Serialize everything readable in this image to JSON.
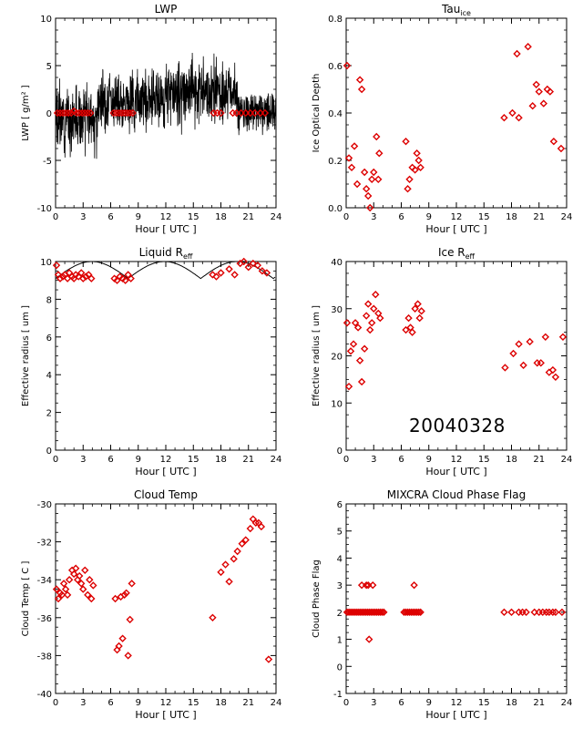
{
  "figure": {
    "date_label": "20040328"
  },
  "chart_data": [
    {
      "type": "line",
      "title": "LWP",
      "xlabel": "Hour [ UTC ]",
      "ylabel": "LWP [ g/m² ]",
      "xlim": [
        0,
        24
      ],
      "ylim": [
        -10,
        10
      ],
      "xticks": [
        0,
        3,
        6,
        9,
        12,
        15,
        18,
        21,
        24
      ],
      "yticks": [
        -10,
        -5,
        0,
        5,
        10
      ],
      "series": [
        {
          "style": "line",
          "color": "#000000",
          "segments": [
            {
              "x_range": [
                0,
                4.6
              ],
              "mean": -0.6,
              "spread": 2.8,
              "seed": 3
            },
            {
              "x_range": [
                4.6,
                12.0
              ],
              "mean": 1.4,
              "spread": 2.6,
              "seed": 7
            },
            {
              "x_range": [
                12.0,
                19.8
              ],
              "mean": 2.2,
              "spread": 2.9,
              "seed": 11
            },
            {
              "x_range": [
                19.8,
                24.0
              ],
              "mean": 0.2,
              "spread": 1.9,
              "seed": 19
            }
          ]
        },
        {
          "style": "marker",
          "marker": "diamond",
          "color": "#dd0000",
          "x": [
            0.2,
            0.5,
            0.8,
            1.1,
            1.4,
            1.7,
            2.0,
            2.3,
            2.6,
            2.9,
            3.2,
            3.5,
            3.8,
            6.3,
            6.6,
            6.9,
            7.2,
            7.5,
            7.8,
            8.1,
            8.4,
            17.2,
            17.6,
            18.0,
            19.3,
            19.7,
            20.2,
            20.7,
            21.2,
            21.7,
            22.3,
            22.8
          ],
          "y": [
            0,
            0,
            0,
            0,
            0,
            0,
            0.2,
            0,
            0,
            0,
            0,
            0,
            0,
            0,
            0,
            0,
            0,
            0,
            0,
            0,
            0,
            0,
            0,
            0,
            0,
            0,
            0,
            0,
            0,
            0,
            0,
            0
          ]
        }
      ]
    },
    {
      "type": "scatter",
      "title": "Tau",
      "title_sub": "ice",
      "xlabel": "Hour [ UTC ]",
      "ylabel": "Ice Optical Depth",
      "xlim": [
        0,
        24
      ],
      "ylim": [
        0.0,
        0.8
      ],
      "xticks": [
        0,
        3,
        6,
        9,
        12,
        15,
        18,
        21,
        24
      ],
      "yticks": [
        0.0,
        0.2,
        0.4,
        0.6,
        0.8
      ],
      "series": [
        {
          "marker": "diamond",
          "color": "#dd0000",
          "x": [
            0.1,
            0.3,
            0.6,
            0.9,
            1.2,
            1.5,
            1.7,
            2.0,
            2.2,
            2.4,
            2.6,
            2.8,
            3.0,
            3.3,
            3.5,
            3.6,
            6.5,
            6.7,
            6.9,
            7.2,
            7.5,
            7.7,
            7.9,
            8.1,
            17.2,
            18.1,
            18.6,
            18.8,
            19.8,
            20.3,
            20.7,
            21.0,
            21.5,
            21.9,
            22.2,
            22.6,
            23.4
          ],
          "y": [
            0.6,
            0.21,
            0.17,
            0.26,
            0.1,
            0.54,
            0.5,
            0.15,
            0.08,
            0.05,
            0.0,
            0.12,
            0.15,
            0.3,
            0.12,
            0.23,
            0.28,
            0.08,
            0.12,
            0.17,
            0.16,
            0.23,
            0.2,
            0.17,
            0.38,
            0.4,
            0.65,
            0.38,
            0.68,
            0.43,
            0.52,
            0.49,
            0.44,
            0.5,
            0.49,
            0.28,
            0.25
          ]
        }
      ]
    },
    {
      "type": "scatter",
      "title": "Liquid R",
      "title_sub": "eff",
      "xlabel": "Hour [ UTC ]",
      "ylabel": "Effective radius [ um ]",
      "xlim": [
        0,
        24
      ],
      "ylim": [
        0,
        10
      ],
      "xticks": [
        0,
        3,
        6,
        9,
        12,
        15,
        18,
        21,
        24
      ],
      "yticks": [
        0,
        2,
        4,
        6,
        8,
        10
      ],
      "curve": {
        "color": "#000000",
        "min_y": 9.1,
        "max_y": 10.0,
        "cap": 10.0
      },
      "series": [
        {
          "marker": "diamond",
          "color": "#dd0000",
          "x": [
            0.1,
            0.3,
            0.5,
            0.8,
            1.0,
            1.3,
            1.5,
            1.8,
            2.0,
            2.2,
            2.5,
            2.8,
            3.0,
            3.3,
            3.6,
            3.9,
            6.4,
            6.7,
            7.0,
            7.3,
            7.6,
            7.9,
            8.2,
            17.1,
            17.5,
            18.0,
            18.9,
            19.5,
            20.1,
            20.5,
            21.0,
            21.5,
            22.0,
            22.5,
            23.0
          ],
          "y": [
            9.8,
            9.3,
            9.1,
            9.2,
            9.3,
            9.1,
            9.4,
            9.2,
            9.1,
            9.3,
            9.2,
            9.4,
            9.1,
            9.2,
            9.3,
            9.1,
            9.1,
            9.0,
            9.2,
            9.1,
            9.0,
            9.3,
            9.1,
            9.3,
            9.2,
            9.4,
            9.6,
            9.3,
            9.9,
            10.0,
            9.7,
            9.9,
            9.8,
            9.5,
            9.4
          ]
        }
      ]
    },
    {
      "type": "scatter",
      "title": "Ice R",
      "title_sub": "eff",
      "xlabel": "Hour [ UTC ]",
      "ylabel": "Effective radius [ um ]",
      "xlim": [
        0,
        24
      ],
      "ylim": [
        0,
        40
      ],
      "xticks": [
        0,
        3,
        6,
        9,
        12,
        15,
        18,
        21,
        24
      ],
      "yticks": [
        0,
        10,
        20,
        30,
        40
      ],
      "series": [
        {
          "marker": "diamond",
          "color": "#dd0000",
          "x": [
            0.1,
            0.3,
            0.5,
            0.8,
            1.0,
            1.3,
            1.5,
            1.7,
            2.0,
            2.2,
            2.4,
            2.6,
            2.8,
            3.0,
            3.2,
            3.5,
            3.7,
            6.5,
            6.8,
            7.0,
            7.2,
            7.5,
            7.8,
            8.0,
            8.2,
            17.3,
            18.2,
            18.8,
            19.3,
            20.0,
            20.8,
            21.2,
            21.7,
            22.1,
            22.5,
            22.8,
            23.6
          ],
          "y": [
            27.0,
            13.5,
            21.0,
            22.5,
            27.0,
            26.0,
            19.0,
            14.5,
            21.5,
            28.5,
            31.0,
            25.5,
            27.0,
            30.0,
            33.0,
            29.0,
            28.0,
            25.5,
            28.0,
            26.0,
            25.0,
            30.0,
            31.0,
            28.0,
            29.5,
            17.5,
            20.5,
            22.5,
            18.0,
            23.0,
            18.5,
            18.5,
            24.0,
            16.5,
            17.0,
            15.5,
            24.0
          ]
        }
      ]
    },
    {
      "type": "scatter",
      "title": "Cloud Temp",
      "xlabel": "Hour [ UTC ]",
      "ylabel": "Cloud Temp [ C ]",
      "xlim": [
        0,
        24
      ],
      "ylim": [
        -40,
        -30
      ],
      "xticks": [
        0,
        3,
        6,
        9,
        12,
        15,
        18,
        21,
        24
      ],
      "yticks": [
        -40,
        -38,
        -36,
        -34,
        -32,
        -30
      ],
      "series": [
        {
          "marker": "diamond",
          "color": "#dd0000",
          "x": [
            0.1,
            0.3,
            0.5,
            0.7,
            0.9,
            1.1,
            1.3,
            1.5,
            1.8,
            2.0,
            2.2,
            2.4,
            2.6,
            2.8,
            3.0,
            3.2,
            3.5,
            3.7,
            3.9,
            4.1,
            6.5,
            6.7,
            6.9,
            7.1,
            7.3,
            7.5,
            7.7,
            7.9,
            8.1,
            8.3,
            17.1,
            18.0,
            18.5,
            18.9,
            19.4,
            19.8,
            20.3,
            20.7,
            21.2,
            21.5,
            21.8,
            22.1,
            22.4,
            23.2
          ],
          "y": [
            -34.5,
            -35.0,
            -34.7,
            -34.8,
            -34.2,
            -34.5,
            -34.8,
            -34.0,
            -33.5,
            -33.7,
            -33.4,
            -34.0,
            -33.8,
            -34.2,
            -34.5,
            -33.5,
            -34.8,
            -34.0,
            -35.0,
            -34.3,
            -35.0,
            -37.7,
            -37.5,
            -34.9,
            -37.1,
            -34.8,
            -34.7,
            -38.0,
            -36.1,
            -34.2,
            -36.0,
            -33.6,
            -33.2,
            -34.1,
            -32.9,
            -32.5,
            -32.1,
            -31.9,
            -31.3,
            -30.8,
            -31.0,
            -31.0,
            -31.2,
            -38.2
          ]
        }
      ]
    },
    {
      "type": "scatter",
      "title": "MIXCRA Cloud Phase Flag",
      "xlabel": "Hour [ UTC ]",
      "ylabel": "Cloud Phase Flag",
      "xlim": [
        0,
        24
      ],
      "ylim": [
        -1,
        6
      ],
      "xticks": [
        0,
        3,
        6,
        9,
        12,
        15,
        18,
        21,
        24
      ],
      "yticks": [
        -1,
        0,
        1,
        2,
        3,
        4,
        5,
        6
      ],
      "series": [
        {
          "marker": "diamond",
          "color": "#dd0000",
          "x": [
            0.1,
            0.3,
            0.5,
            0.7,
            0.9,
            1.1,
            1.3,
            1.5,
            1.7,
            1.9,
            2.1,
            2.3,
            2.5,
            2.7,
            2.9,
            3.1,
            3.3,
            3.5,
            3.7,
            3.9,
            4.1,
            6.3,
            6.5,
            6.7,
            6.9,
            7.1,
            7.3,
            7.5,
            7.7,
            7.9,
            8.1,
            17.2,
            18.0,
            18.8,
            19.2,
            19.6,
            20.5,
            21.0,
            21.4,
            21.8,
            22.1,
            22.5,
            22.8,
            23.5,
            1.7,
            2.2,
            2.4,
            2.9,
            7.4,
            2.5
          ],
          "y": [
            2,
            2,
            2,
            2,
            2,
            2,
            2,
            2,
            2,
            2,
            2,
            2,
            2,
            2,
            2,
            2,
            2,
            2,
            2,
            2,
            2,
            2,
            2,
            2,
            2,
            2,
            2,
            2,
            2,
            2,
            2,
            2,
            2,
            2,
            2,
            2,
            2,
            2,
            2,
            2,
            2,
            2,
            2,
            2,
            3,
            3,
            3,
            3,
            3,
            1
          ]
        }
      ]
    }
  ]
}
